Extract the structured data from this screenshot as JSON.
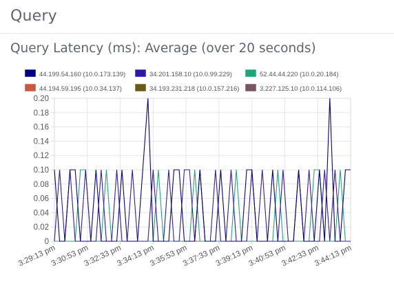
{
  "page": {
    "section_title": "Query",
    "panel_title": "Query Latency (ms): Average (over 20 seconds)"
  },
  "chart_data": {
    "type": "line",
    "title": "Query Latency (ms): Average (over 20 seconds)",
    "xlabel": "",
    "ylabel": "",
    "ylim": [
      0,
      0.2
    ],
    "yticks": [
      "0",
      "0.02",
      "0.04",
      "0.06",
      "0.08",
      "0.10",
      "0.12",
      "0.14",
      "0.16",
      "0.18",
      "0.20"
    ],
    "xticks": [
      "3:29:13 pm",
      "3:30:53 pm",
      "3:32:33 pm",
      "3:34:13 pm",
      "3:35:53 pm",
      "3:37:33 pm",
      "3:39:13 pm",
      "3:40:53 pm",
      "3:42:33 pm",
      "3:44:13 pm"
    ],
    "grid": true,
    "legend_position": "top",
    "series": [
      {
        "name": "44.199.54.160 (10.0.173.139)",
        "color": "#000080",
        "values": [
          0.1,
          0,
          0,
          0.1,
          0.1,
          0,
          0,
          0,
          0.1,
          0,
          0,
          0,
          0,
          0.1,
          0,
          0,
          0,
          0.1,
          0.2,
          0,
          0,
          0,
          0,
          0.1,
          0.1,
          0,
          0,
          0,
          0.1,
          0,
          0,
          0,
          0.1,
          0,
          0,
          0,
          0,
          0.1,
          0.1,
          0,
          0,
          0,
          0.1,
          0,
          0,
          0,
          0,
          0.1,
          0,
          0,
          0,
          0.1,
          0,
          0.2,
          0,
          0,
          0.1,
          0.1
        ]
      },
      {
        "name": "34.201.158.10 (10.0.99.229)",
        "color": "#3318a8",
        "values": [
          0,
          0.1,
          0,
          0.1,
          0,
          0,
          0.1,
          0,
          0,
          0.1,
          0,
          0,
          0.1,
          0,
          0,
          0.1,
          0,
          0,
          0,
          0.1,
          0,
          0,
          0.1,
          0,
          0,
          0.1,
          0.1,
          0,
          0.1,
          0,
          0,
          0.1,
          0,
          0,
          0.1,
          0,
          0,
          0,
          0.1,
          0,
          0.1,
          0,
          0,
          0,
          0.1,
          0,
          0,
          0.1,
          0,
          0.1,
          0,
          0,
          0.1,
          0,
          0.1,
          0,
          0,
          0
        ]
      },
      {
        "name": "52.44.44.220 (10.0.20.184)",
        "color": "#1ea67a",
        "values": [
          0,
          0,
          0,
          0,
          0,
          0.1,
          0.1,
          0,
          0,
          0,
          0.1,
          0,
          0,
          0,
          0,
          0,
          0,
          0,
          0,
          0,
          0.1,
          0,
          0,
          0,
          0,
          0,
          0,
          0.1,
          0,
          0,
          0,
          0,
          0,
          0,
          0,
          0.1,
          0,
          0,
          0,
          0,
          0,
          0,
          0,
          0.1,
          0,
          0,
          0,
          0,
          0,
          0,
          0.1,
          0.1,
          0,
          0,
          0,
          0.1,
          0,
          0
        ]
      },
      {
        "name": "44.194.59.195 (10.0.34.137)",
        "color": "#c8593f",
        "values": [
          0,
          0,
          0,
          0,
          0,
          0,
          0,
          0,
          0,
          0,
          0,
          0,
          0,
          0,
          0,
          0,
          0,
          0,
          0,
          0,
          0,
          0,
          0,
          0,
          0,
          0,
          0,
          0,
          0,
          0,
          0,
          0,
          0,
          0,
          0,
          0,
          0,
          0,
          0,
          0,
          0,
          0,
          0,
          0,
          0,
          0,
          0,
          0,
          0,
          0,
          0,
          0,
          0,
          0,
          0,
          0,
          0,
          0
        ]
      },
      {
        "name": "34.193.231.218 (10.0.157.216)",
        "color": "#6a5a14",
        "values": [
          0,
          0,
          0,
          0,
          0,
          0,
          0,
          0,
          0,
          0,
          0,
          0,
          0,
          0,
          0,
          0,
          0,
          0,
          0,
          0,
          0,
          0,
          0,
          0,
          0,
          0,
          0,
          0,
          0,
          0,
          0,
          0,
          0,
          0,
          0,
          0,
          0,
          0,
          0,
          0,
          0,
          0,
          0,
          0,
          0,
          0,
          0,
          0,
          0,
          0,
          0,
          0,
          0,
          0,
          0,
          0,
          0,
          0
        ]
      },
      {
        "name": "3.227.125.10 (10.0.114.106)",
        "color": "#7a5560",
        "values": [
          0,
          0,
          0,
          0,
          0,
          0,
          0,
          0,
          0,
          0,
          0,
          0,
          0,
          0,
          0,
          0,
          0,
          0,
          0,
          0,
          0,
          0,
          0,
          0,
          0,
          0,
          0,
          0,
          0,
          0,
          0,
          0,
          0,
          0,
          0,
          0,
          0,
          0,
          0,
          0,
          0,
          0,
          0,
          0,
          0,
          0,
          0,
          0,
          0,
          0,
          0,
          0,
          0,
          0,
          0,
          0,
          0,
          0
        ]
      }
    ]
  }
}
